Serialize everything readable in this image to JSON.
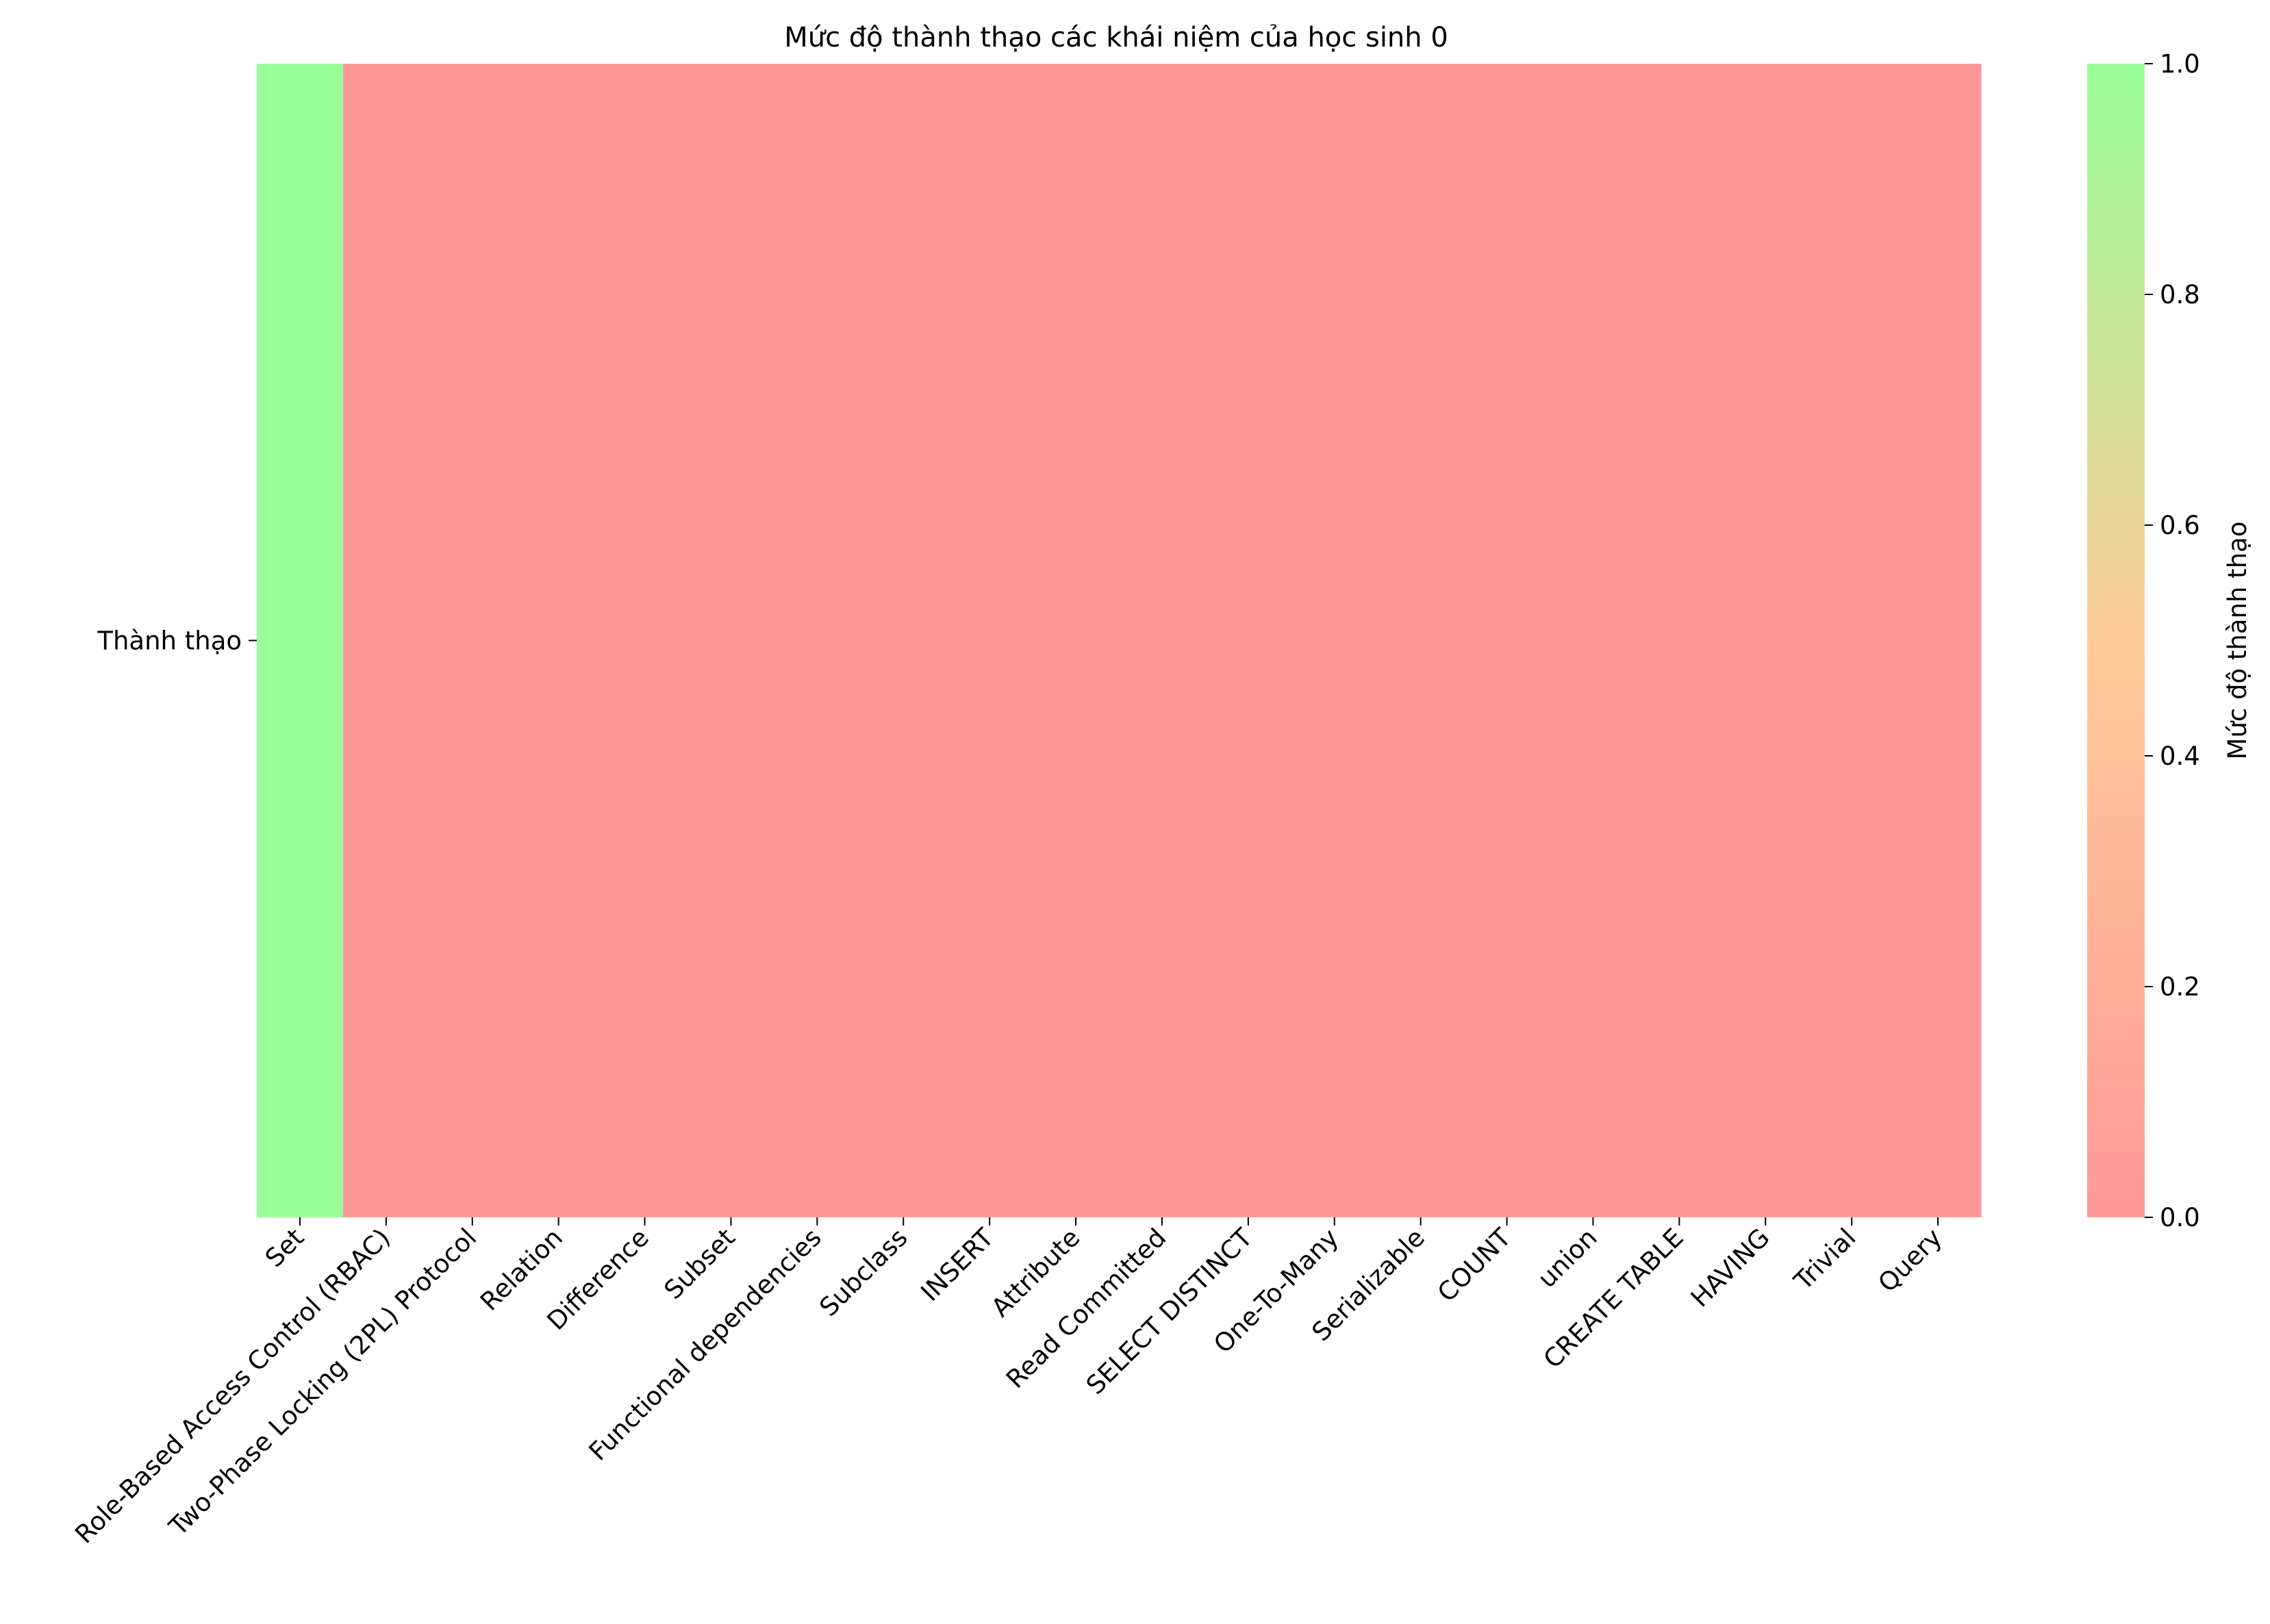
{
  "chart_data": {
    "type": "heatmap",
    "title": "Mức độ thành thạo các khái niệm của học sinh 0",
    "rows": [
      "Thành thạo"
    ],
    "columns": [
      "Set",
      "Role-Based Access Control (RBAC)",
      "Two-Phase Locking (2PL) Protocol",
      "Relation",
      "Difference",
      "Subset",
      "Functional dependencies",
      "Subclass",
      "INSERT",
      "Attribute",
      "Read Committed",
      "SELECT DISTINCT",
      "One-To-Many",
      "Serializable",
      "COUNT",
      "union",
      "CREATE TABLE",
      "HAVING",
      "Trivial",
      "Query"
    ],
    "values": [
      [
        1,
        0,
        0,
        0,
        0,
        0,
        0,
        0,
        0,
        0,
        0,
        0,
        0,
        0,
        0,
        0,
        0,
        0,
        0,
        0
      ]
    ],
    "colorbar": {
      "label": "Mức độ thành thạo",
      "range": [
        0,
        1
      ],
      "ticks": [
        "0.0",
        "0.2",
        "0.4",
        "0.6",
        "0.8",
        "1.0"
      ],
      "tick_values": [
        0,
        0.2,
        0.4,
        0.6,
        0.8,
        1.0
      ],
      "colors": [
        "#ff9999",
        "#ffcc99",
        "#99ff99"
      ]
    },
    "legend": "colorbar right"
  }
}
